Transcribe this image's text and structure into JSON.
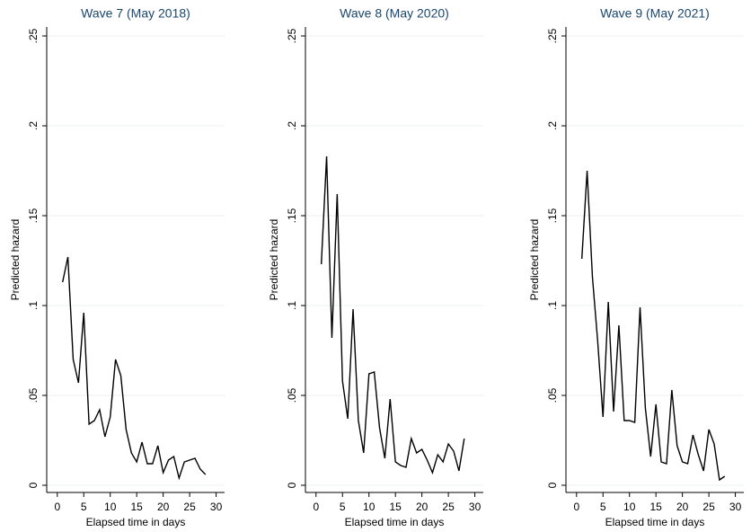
{
  "chart_data": [
    {
      "type": "line",
      "title": "Wave 7 (May 2018)",
      "x_label": "Elapsed time in days",
      "y_label": "Predicted hazard",
      "x": [
        1,
        2,
        3,
        4,
        5,
        6,
        7,
        8,
        9,
        10,
        11,
        12,
        13,
        14,
        15,
        16,
        17,
        18,
        19,
        20,
        21,
        22,
        23,
        24,
        25,
        26,
        27,
        28
      ],
      "series": [
        {
          "color": "#000000",
          "values": [
            0.113,
            0.127,
            0.07,
            0.057,
            0.096,
            0.034,
            0.036,
            0.042,
            0.027,
            0.038,
            0.07,
            0.061,
            0.031,
            0.018,
            0.013,
            0.024,
            0.012,
            0.012,
            0.022,
            0.007,
            0.014,
            0.016,
            0.004,
            0.013,
            0.014,
            0.015,
            0.009,
            0.006
          ]
        }
      ],
      "xlim": [
        -2,
        31.6
      ],
      "xticks": [
        0,
        5,
        10,
        15,
        20,
        25,
        30
      ],
      "ylim": [
        -0.004,
        0.255
      ],
      "yticks": [
        0,
        {
          "value": 0.05,
          "label": ".05"
        },
        {
          "value": 0.1,
          "label": ".1"
        },
        {
          "value": 0.15,
          "label": ".15"
        },
        {
          "value": 0.2,
          "label": ".2"
        },
        {
          "value": 0.25,
          "label": ".25"
        }
      ],
      "grid": true
    },
    {
      "type": "line",
      "title": "Wave 8 (May 2020)",
      "x_label": "Elapsed time in days",
      "y_label": "Predicted hazard",
      "x": [
        1,
        2,
        3,
        4,
        5,
        6,
        7,
        8,
        9,
        10,
        11,
        12,
        13,
        14,
        15,
        16,
        17,
        18,
        19,
        20,
        21,
        22,
        23,
        24,
        25,
        26,
        27,
        28
      ],
      "series": [
        {
          "color": "#000000",
          "values": [
            0.123,
            0.183,
            0.082,
            0.162,
            0.058,
            0.037,
            0.098,
            0.036,
            0.018,
            0.062,
            0.063,
            0.032,
            0.015,
            0.048,
            0.013,
            0.011,
            0.01,
            0.026,
            0.018,
            0.02,
            0.014,
            0.007,
            0.017,
            0.013,
            0.023,
            0.019,
            0.008,
            0.026
          ]
        }
      ],
      "xlim": [
        -2,
        31.6
      ],
      "xticks": [
        0,
        5,
        10,
        15,
        20,
        25,
        30
      ],
      "ylim": [
        -0.004,
        0.255
      ],
      "yticks": [
        0,
        {
          "value": 0.05,
          "label": ".05"
        },
        {
          "value": 0.1,
          "label": ".1"
        },
        {
          "value": 0.15,
          "label": ".15"
        },
        {
          "value": 0.2,
          "label": ".2"
        },
        {
          "value": 0.25,
          "label": ".25"
        }
      ],
      "grid": true
    },
    {
      "type": "line",
      "title": "Wave 9 (May 2021)",
      "x_label": "Elapsed time in days",
      "y_label": "Predicted hazard",
      "x": [
        1,
        2,
        3,
        4,
        5,
        6,
        7,
        8,
        9,
        10,
        11,
        12,
        13,
        14,
        15,
        16,
        17,
        18,
        19,
        20,
        21,
        22,
        23,
        24,
        25,
        26,
        27,
        28
      ],
      "series": [
        {
          "color": "#000000",
          "values": [
            0.126,
            0.175,
            0.116,
            0.08,
            0.038,
            0.102,
            0.041,
            0.089,
            0.036,
            0.036,
            0.035,
            0.099,
            0.043,
            0.016,
            0.045,
            0.013,
            0.012,
            0.053,
            0.022,
            0.013,
            0.012,
            0.028,
            0.017,
            0.008,
            0.031,
            0.023,
            0.003,
            0.005
          ]
        }
      ],
      "xlim": [
        -2,
        31.6
      ],
      "xticks": [
        0,
        5,
        10,
        15,
        20,
        25,
        30
      ],
      "ylim": [
        -0.004,
        0.255
      ],
      "yticks": [
        0,
        {
          "value": 0.05,
          "label": ".05"
        },
        {
          "value": 0.1,
          "label": ".1"
        },
        {
          "value": 0.15,
          "label": ".15"
        },
        {
          "value": 0.2,
          "label": ".2"
        },
        {
          "value": 0.25,
          "label": ".25"
        }
      ],
      "grid": true
    }
  ]
}
